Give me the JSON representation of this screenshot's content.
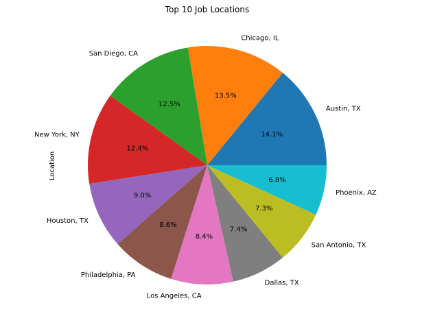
{
  "chart_data": {
    "type": "pie",
    "title": "Top 10 Job Locations",
    "ylabel": "Location",
    "start_angle_deg": 0,
    "direction": "counterclockwise",
    "labels": [
      "Austin, TX",
      "Chicago, IL",
      "San Diego, CA",
      "New York, NY",
      "Houston, TX",
      "Philadelphia, PA",
      "Los Angeles, CA",
      "Dallas, TX",
      "San Antonio, TX",
      "Phoenix, AZ"
    ],
    "values": [
      14.1,
      13.5,
      12.5,
      12.4,
      9.0,
      8.6,
      8.4,
      7.4,
      7.3,
      6.8
    ],
    "percent_labels": [
      "14.1%",
      "13.5%",
      "12.5%",
      "12.4%",
      "9.0%",
      "8.6%",
      "8.4%",
      "7.4%",
      "7.3%",
      "6.8%"
    ],
    "colors": [
      "#1f77b4",
      "#ff7f0e",
      "#2ca02c",
      "#d62728",
      "#9467bd",
      "#8c564b",
      "#e377c2",
      "#7f7f7f",
      "#bcbd22",
      "#17becf"
    ]
  }
}
